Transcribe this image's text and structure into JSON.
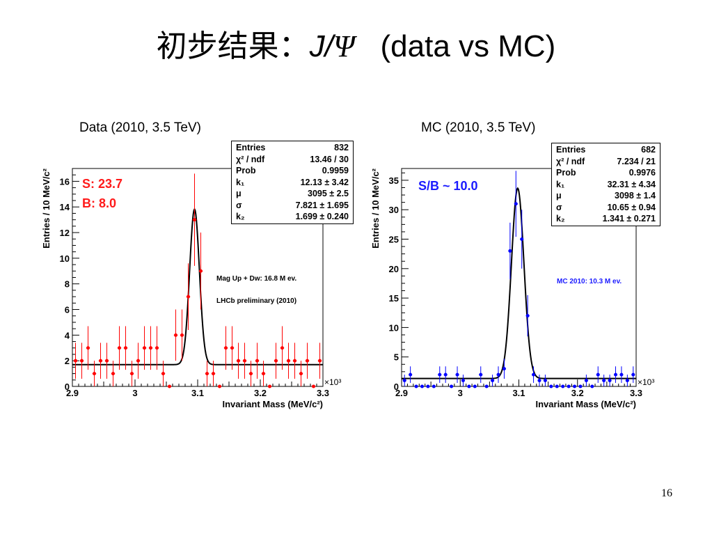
{
  "slide": {
    "title_prefix": "初步结果：",
    "title_j": "J/",
    "title_psi": "Ψ",
    "title_suffix": "(data vs MC)",
    "page_number": "16"
  },
  "chart_data": [
    {
      "type": "scatter",
      "title": "Data (2010, 3.5 TeV)",
      "xlabel": "Invariant Mass (MeV/c²)",
      "ylabel": "Entries / 10 MeV/c²",
      "x_exponent_label": "×10³",
      "xlim": [
        2.9,
        3.3
      ],
      "ylim": [
        0,
        17
      ],
      "x_ticks": [
        2.9,
        3.0,
        3.1,
        3.2,
        3.3
      ],
      "x_tick_labels": [
        "2.9",
        "3",
        "3.1",
        "3.2",
        "3.3"
      ],
      "y_ticks": [
        0,
        2,
        4,
        6,
        8,
        10,
        12,
        14,
        16
      ],
      "y_tick_labels": [
        "0",
        "2",
        "4",
        "6",
        "8",
        "10",
        "12",
        "14",
        "16"
      ],
      "color": "#ff0000",
      "series": [
        {
          "x": [
            2.905,
            2.915,
            2.925,
            2.935,
            2.945,
            2.955,
            2.965,
            2.975,
            2.985,
            2.995,
            3.005,
            3.015,
            3.025,
            3.035,
            3.045,
            3.055,
            3.065,
            3.075,
            3.085,
            3.095,
            3.105,
            3.115,
            3.125,
            3.135,
            3.145,
            3.155,
            3.165,
            3.175,
            3.185,
            3.195,
            3.205,
            3.215,
            3.225,
            3.235,
            3.245,
            3.255,
            3.265,
            3.275,
            3.285,
            3.295
          ],
          "y": [
            2,
            2,
            3,
            1,
            2,
            2,
            1,
            3,
            3,
            1,
            2,
            3,
            3,
            3,
            1,
            0,
            4,
            4,
            7,
            13,
            9,
            1,
            1,
            0,
            3,
            3,
            2,
            2,
            1,
            2,
            1,
            0,
            2,
            3,
            2,
            2,
            1,
            2,
            0,
            2
          ],
          "errors": [
            1.4,
            1.4,
            1.7,
            1.0,
            1.4,
            1.4,
            1.0,
            1.7,
            1.7,
            1.0,
            1.4,
            1.7,
            1.7,
            1.7,
            1.0,
            0,
            2.0,
            2.0,
            2.6,
            3.6,
            3.0,
            1.0,
            1.0,
            0,
            1.7,
            1.7,
            1.4,
            1.4,
            1.0,
            1.4,
            1.0,
            0,
            1.4,
            1.7,
            1.4,
            1.4,
            1.0,
            1.4,
            0,
            1.4
          ]
        }
      ],
      "fit": {
        "k1": 12.13,
        "mu": 3.095,
        "sigma": 0.007821,
        "k2": 1.699
      },
      "stats": [
        {
          "label": "Entries",
          "value": "832"
        },
        {
          "label": "χ² / ndf",
          "value": "13.46 / 30"
        },
        {
          "label": "Prob",
          "value": "0.9959"
        },
        {
          "label": "k₁",
          "value": "12.13 ± 3.42"
        },
        {
          "label": "μ",
          "value": "3095 ± 2.5"
        },
        {
          "label": "σ",
          "value": "7.821 ± 1.695"
        },
        {
          "label": "k₂",
          "value": "1.699 ± 0.240"
        }
      ],
      "annotations": {
        "signal": "S: 23.7",
        "background": "B: 8.0",
        "note1": "Mag Up + Dw: 16.8 M ev.",
        "note2": "LHCb preliminary (2010)"
      }
    },
    {
      "type": "scatter",
      "title": "MC (2010, 3.5 TeV)",
      "xlabel": "Invariant Mass (MeV/c²)",
      "ylabel": "Entries / 10 MeV/c²",
      "x_exponent_label": "×10³",
      "xlim": [
        2.9,
        3.3
      ],
      "ylim": [
        0,
        37
      ],
      "x_ticks": [
        2.9,
        3.0,
        3.1,
        3.2,
        3.3
      ],
      "x_tick_labels": [
        "2.9",
        "3",
        "3.1",
        "3.2",
        "3.3"
      ],
      "y_ticks": [
        0,
        5,
        10,
        15,
        20,
        25,
        30,
        35
      ],
      "y_tick_labels": [
        "0",
        "5",
        "10",
        "15",
        "20",
        "25",
        "30",
        "35"
      ],
      "color": "#0000ff",
      "series": [
        {
          "x": [
            2.905,
            2.915,
            2.925,
            2.935,
            2.945,
            2.955,
            2.965,
            2.975,
            2.985,
            2.995,
            3.005,
            3.015,
            3.025,
            3.035,
            3.045,
            3.055,
            3.065,
            3.075,
            3.085,
            3.095,
            3.105,
            3.115,
            3.125,
            3.135,
            3.145,
            3.155,
            3.165,
            3.175,
            3.185,
            3.195,
            3.205,
            3.215,
            3.225,
            3.235,
            3.245,
            3.255,
            3.265,
            3.275,
            3.285,
            3.295
          ],
          "y": [
            1,
            2,
            0,
            0,
            0,
            0,
            2,
            2,
            0,
            2,
            1,
            0,
            0,
            2,
            0,
            1,
            2,
            3,
            23,
            31,
            25,
            12,
            2,
            1,
            1,
            0,
            0,
            0,
            0,
            0,
            0,
            1,
            0,
            2,
            1,
            1,
            2,
            2,
            1,
            2
          ],
          "errors": [
            1.0,
            1.4,
            0,
            0,
            0,
            0,
            1.4,
            1.4,
            0,
            1.4,
            1.0,
            0,
            0,
            1.4,
            0,
            1.0,
            1.4,
            1.7,
            4.8,
            5.6,
            5.0,
            3.5,
            1.4,
            1.0,
            1.0,
            0,
            0,
            0,
            0,
            0,
            0,
            1.0,
            0,
            1.4,
            1.0,
            1.0,
            1.4,
            1.4,
            1.0,
            1.4
          ]
        }
      ],
      "fit": {
        "k1": 32.31,
        "mu": 3.098,
        "sigma": 0.01065,
        "k2": 1.341
      },
      "stats": [
        {
          "label": "Entries",
          "value": "682"
        },
        {
          "label": "χ² / ndf",
          "value": "7.234 / 21"
        },
        {
          "label": "Prob",
          "value": "0.9976"
        },
        {
          "label": "k₁",
          "value": "32.31 ± 4.34"
        },
        {
          "label": "μ",
          "value": "3098 ± 1.4"
        },
        {
          "label": "σ",
          "value": "10.65 ± 0.94"
        },
        {
          "label": "k₂",
          "value": "1.341 ± 0.271"
        }
      ],
      "annotations": {
        "sb": "S/B ~ 10.0",
        "note1": "MC 2010: 10.3 M ev."
      }
    }
  ]
}
